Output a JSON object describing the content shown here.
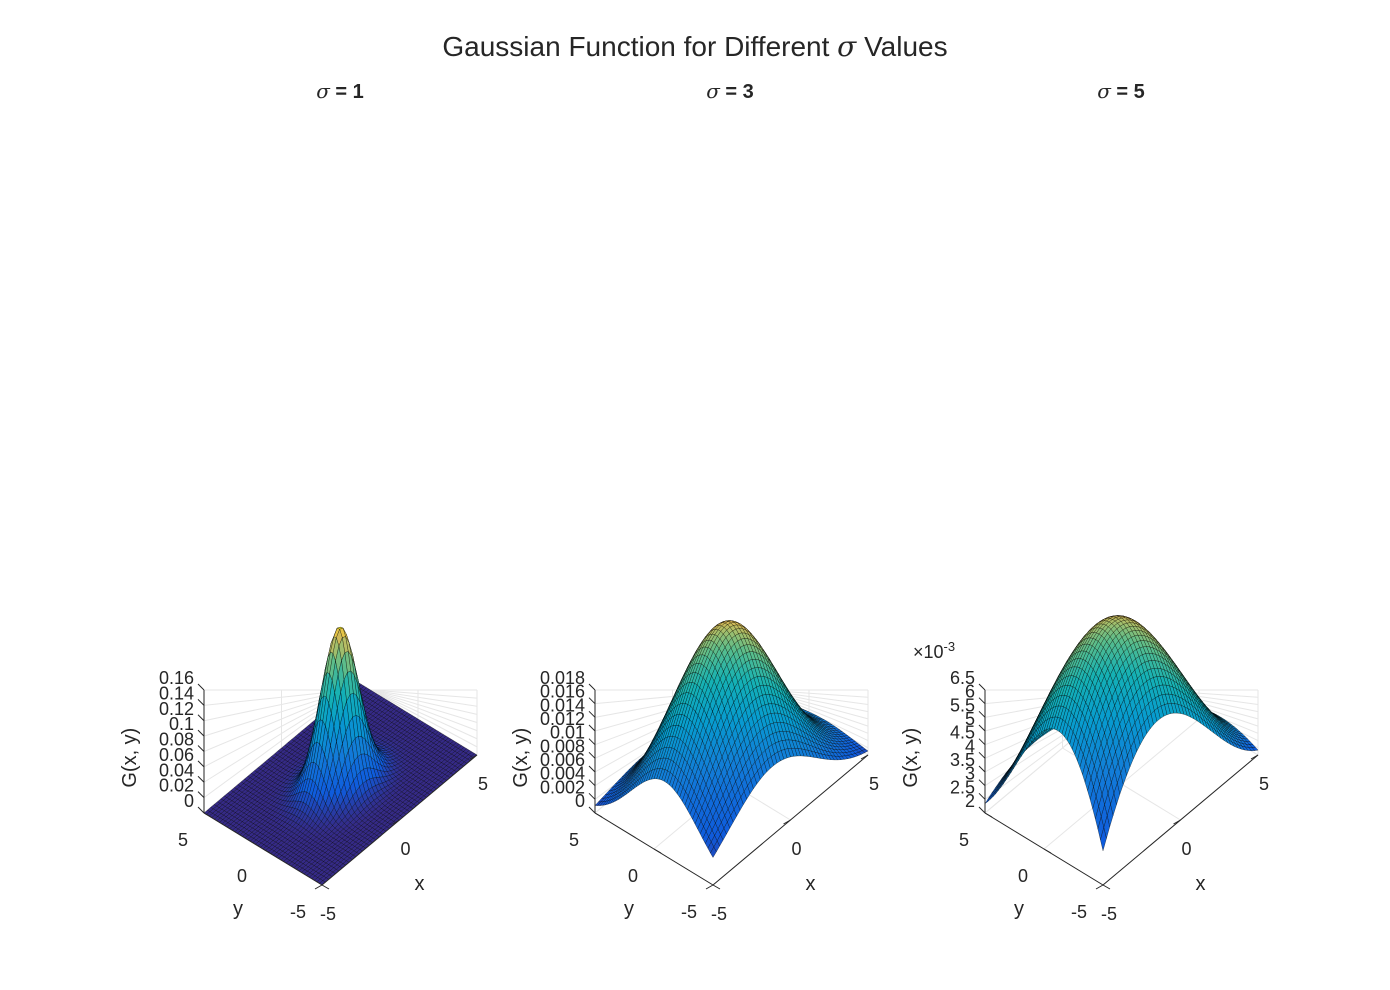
{
  "figure": {
    "title_prefix": "Gaussian Function for Different ",
    "title_symbol": "σ",
    "title_suffix": " Values"
  },
  "colors": {
    "background": "#ffffff",
    "grid": "#e6e6e6",
    "axis": "#262626",
    "mesh_lines": "#000000",
    "colormap": "parula"
  },
  "chart_data": [
    {
      "type": "surface",
      "function": "G(x,y) = exp(-(x^2+y^2)/(2*sigma^2)) / (2*pi*sigma^2)",
      "sigma": 1,
      "title_symbol": "σ",
      "title_value": " = 1",
      "xlabel": "x",
      "ylabel": "y",
      "zlabel": "G(x, y)",
      "xlim": [
        -5,
        5
      ],
      "ylim": [
        -5,
        5
      ],
      "zlim": [
        0,
        0.16
      ],
      "xticks": [
        "-5",
        "0",
        "5"
      ],
      "yticks": [
        "-5",
        "0",
        "5"
      ],
      "zticks": [
        "0",
        "0.02",
        "0.04",
        "0.06",
        "0.08",
        "0.1",
        "0.12",
        "0.14",
        "0.16"
      ],
      "z_exponent": "",
      "z_peak": 0.159,
      "grid": true
    },
    {
      "type": "surface",
      "function": "G(x,y) = exp(-(x^2+y^2)/(2*sigma^2)) / (2*pi*sigma^2)",
      "sigma": 3,
      "title_symbol": "σ",
      "title_value": " = 3",
      "xlabel": "x",
      "ylabel": "y",
      "zlabel": "G(x, y)",
      "xlim": [
        -5,
        5
      ],
      "ylim": [
        -5,
        5
      ],
      "zlim": [
        0,
        0.018
      ],
      "xticks": [
        "-5",
        "0",
        "5"
      ],
      "yticks": [
        "-5",
        "0",
        "5"
      ],
      "zticks": [
        "0",
        "0.002",
        "0.004",
        "0.006",
        "0.008",
        "0.01",
        "0.012",
        "0.014",
        "0.016",
        "0.018"
      ],
      "z_exponent": "",
      "z_peak": 0.0177,
      "grid": true
    },
    {
      "type": "surface",
      "function": "G(x,y) = exp(-(x^2+y^2)/(2*sigma^2)) / (2*pi*sigma^2)",
      "sigma": 5,
      "title_symbol": "σ",
      "title_value": " = 5",
      "xlabel": "x",
      "ylabel": "y",
      "zlabel": "G(x, y)",
      "xlim": [
        -5,
        5
      ],
      "ylim": [
        -5,
        5
      ],
      "zlim": [
        2,
        6.5
      ],
      "xticks": [
        "-5",
        "0",
        "5"
      ],
      "yticks": [
        "-5",
        "0",
        "5"
      ],
      "zticks": [
        "2",
        "2.5",
        "3",
        "3.5",
        "4",
        "4.5",
        "5",
        "5.5",
        "6",
        "6.5"
      ],
      "z_exponent": "×10",
      "z_exponent_power": "-3",
      "z_scale": 0.001,
      "z_peak": 0.00637,
      "grid": true
    }
  ]
}
